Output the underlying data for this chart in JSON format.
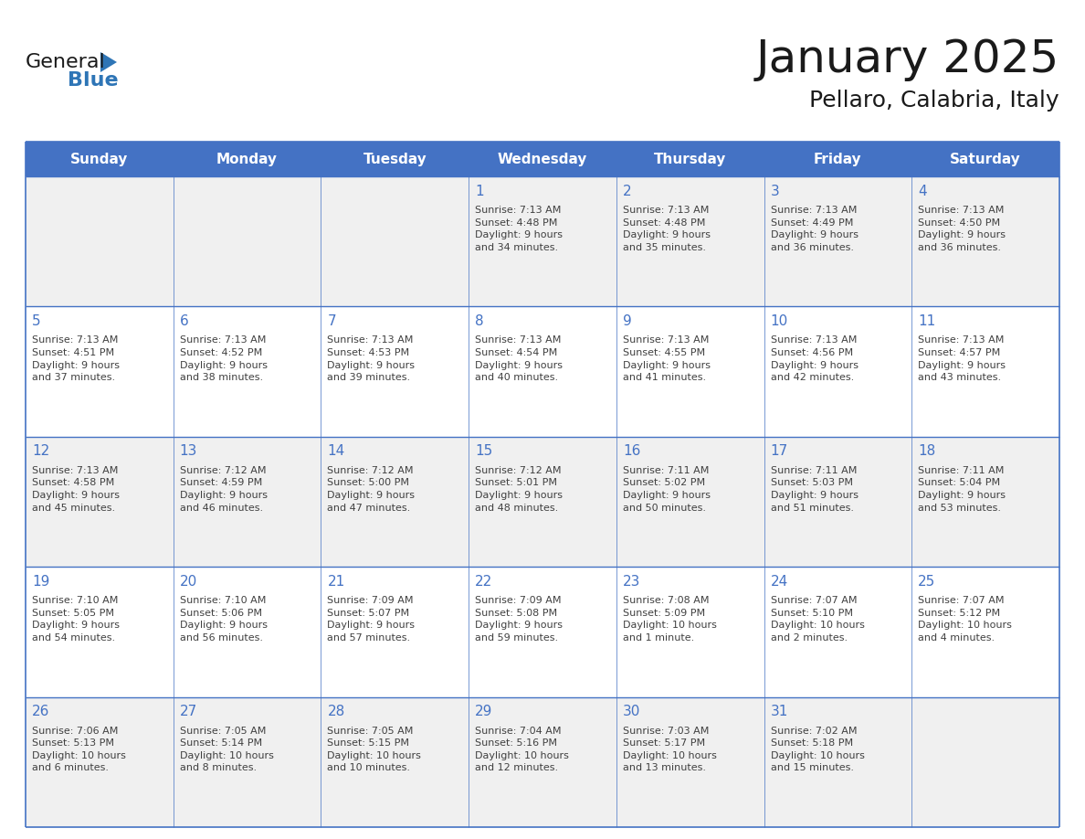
{
  "title": "January 2025",
  "subtitle": "Pellaro, Calabria, Italy",
  "days_of_week": [
    "Sunday",
    "Monday",
    "Tuesday",
    "Wednesday",
    "Thursday",
    "Friday",
    "Saturday"
  ],
  "header_bg": "#4472C4",
  "header_text_color": "#FFFFFF",
  "row_bg_gray": "#F2F2F2",
  "row_bg_white": "#FFFFFF",
  "cell_border_color": "#4472C4",
  "row_border_color": "#4472C4",
  "text_color": "#404040",
  "day_num_color": "#4472C4",
  "title_color": "#1a1a1a",
  "logo_general_color": "#1a1a1a",
  "logo_blue_color": "#2E75B6",
  "logo_triangle_color": "#2E75B6",
  "calendar_data": [
    [
      {
        "day": "",
        "info": ""
      },
      {
        "day": "",
        "info": ""
      },
      {
        "day": "",
        "info": ""
      },
      {
        "day": "1",
        "info": "Sunrise: 7:13 AM\nSunset: 4:48 PM\nDaylight: 9 hours\nand 34 minutes."
      },
      {
        "day": "2",
        "info": "Sunrise: 7:13 AM\nSunset: 4:48 PM\nDaylight: 9 hours\nand 35 minutes."
      },
      {
        "day": "3",
        "info": "Sunrise: 7:13 AM\nSunset: 4:49 PM\nDaylight: 9 hours\nand 36 minutes."
      },
      {
        "day": "4",
        "info": "Sunrise: 7:13 AM\nSunset: 4:50 PM\nDaylight: 9 hours\nand 36 minutes."
      }
    ],
    [
      {
        "day": "5",
        "info": "Sunrise: 7:13 AM\nSunset: 4:51 PM\nDaylight: 9 hours\nand 37 minutes."
      },
      {
        "day": "6",
        "info": "Sunrise: 7:13 AM\nSunset: 4:52 PM\nDaylight: 9 hours\nand 38 minutes."
      },
      {
        "day": "7",
        "info": "Sunrise: 7:13 AM\nSunset: 4:53 PM\nDaylight: 9 hours\nand 39 minutes."
      },
      {
        "day": "8",
        "info": "Sunrise: 7:13 AM\nSunset: 4:54 PM\nDaylight: 9 hours\nand 40 minutes."
      },
      {
        "day": "9",
        "info": "Sunrise: 7:13 AM\nSunset: 4:55 PM\nDaylight: 9 hours\nand 41 minutes."
      },
      {
        "day": "10",
        "info": "Sunrise: 7:13 AM\nSunset: 4:56 PM\nDaylight: 9 hours\nand 42 minutes."
      },
      {
        "day": "11",
        "info": "Sunrise: 7:13 AM\nSunset: 4:57 PM\nDaylight: 9 hours\nand 43 minutes."
      }
    ],
    [
      {
        "day": "12",
        "info": "Sunrise: 7:13 AM\nSunset: 4:58 PM\nDaylight: 9 hours\nand 45 minutes."
      },
      {
        "day": "13",
        "info": "Sunrise: 7:12 AM\nSunset: 4:59 PM\nDaylight: 9 hours\nand 46 minutes."
      },
      {
        "day": "14",
        "info": "Sunrise: 7:12 AM\nSunset: 5:00 PM\nDaylight: 9 hours\nand 47 minutes."
      },
      {
        "day": "15",
        "info": "Sunrise: 7:12 AM\nSunset: 5:01 PM\nDaylight: 9 hours\nand 48 minutes."
      },
      {
        "day": "16",
        "info": "Sunrise: 7:11 AM\nSunset: 5:02 PM\nDaylight: 9 hours\nand 50 minutes."
      },
      {
        "day": "17",
        "info": "Sunrise: 7:11 AM\nSunset: 5:03 PM\nDaylight: 9 hours\nand 51 minutes."
      },
      {
        "day": "18",
        "info": "Sunrise: 7:11 AM\nSunset: 5:04 PM\nDaylight: 9 hours\nand 53 minutes."
      }
    ],
    [
      {
        "day": "19",
        "info": "Sunrise: 7:10 AM\nSunset: 5:05 PM\nDaylight: 9 hours\nand 54 minutes."
      },
      {
        "day": "20",
        "info": "Sunrise: 7:10 AM\nSunset: 5:06 PM\nDaylight: 9 hours\nand 56 minutes."
      },
      {
        "day": "21",
        "info": "Sunrise: 7:09 AM\nSunset: 5:07 PM\nDaylight: 9 hours\nand 57 minutes."
      },
      {
        "day": "22",
        "info": "Sunrise: 7:09 AM\nSunset: 5:08 PM\nDaylight: 9 hours\nand 59 minutes."
      },
      {
        "day": "23",
        "info": "Sunrise: 7:08 AM\nSunset: 5:09 PM\nDaylight: 10 hours\nand 1 minute."
      },
      {
        "day": "24",
        "info": "Sunrise: 7:07 AM\nSunset: 5:10 PM\nDaylight: 10 hours\nand 2 minutes."
      },
      {
        "day": "25",
        "info": "Sunrise: 7:07 AM\nSunset: 5:12 PM\nDaylight: 10 hours\nand 4 minutes."
      }
    ],
    [
      {
        "day": "26",
        "info": "Sunrise: 7:06 AM\nSunset: 5:13 PM\nDaylight: 10 hours\nand 6 minutes."
      },
      {
        "day": "27",
        "info": "Sunrise: 7:05 AM\nSunset: 5:14 PM\nDaylight: 10 hours\nand 8 minutes."
      },
      {
        "day": "28",
        "info": "Sunrise: 7:05 AM\nSunset: 5:15 PM\nDaylight: 10 hours\nand 10 minutes."
      },
      {
        "day": "29",
        "info": "Sunrise: 7:04 AM\nSunset: 5:16 PM\nDaylight: 10 hours\nand 12 minutes."
      },
      {
        "day": "30",
        "info": "Sunrise: 7:03 AM\nSunset: 5:17 PM\nDaylight: 10 hours\nand 13 minutes."
      },
      {
        "day": "31",
        "info": "Sunrise: 7:02 AM\nSunset: 5:18 PM\nDaylight: 10 hours\nand 15 minutes."
      },
      {
        "day": "",
        "info": ""
      }
    ]
  ],
  "row_backgrounds": [
    "#F0F0F0",
    "#FFFFFF",
    "#F0F0F0",
    "#FFFFFF",
    "#F0F0F0"
  ]
}
